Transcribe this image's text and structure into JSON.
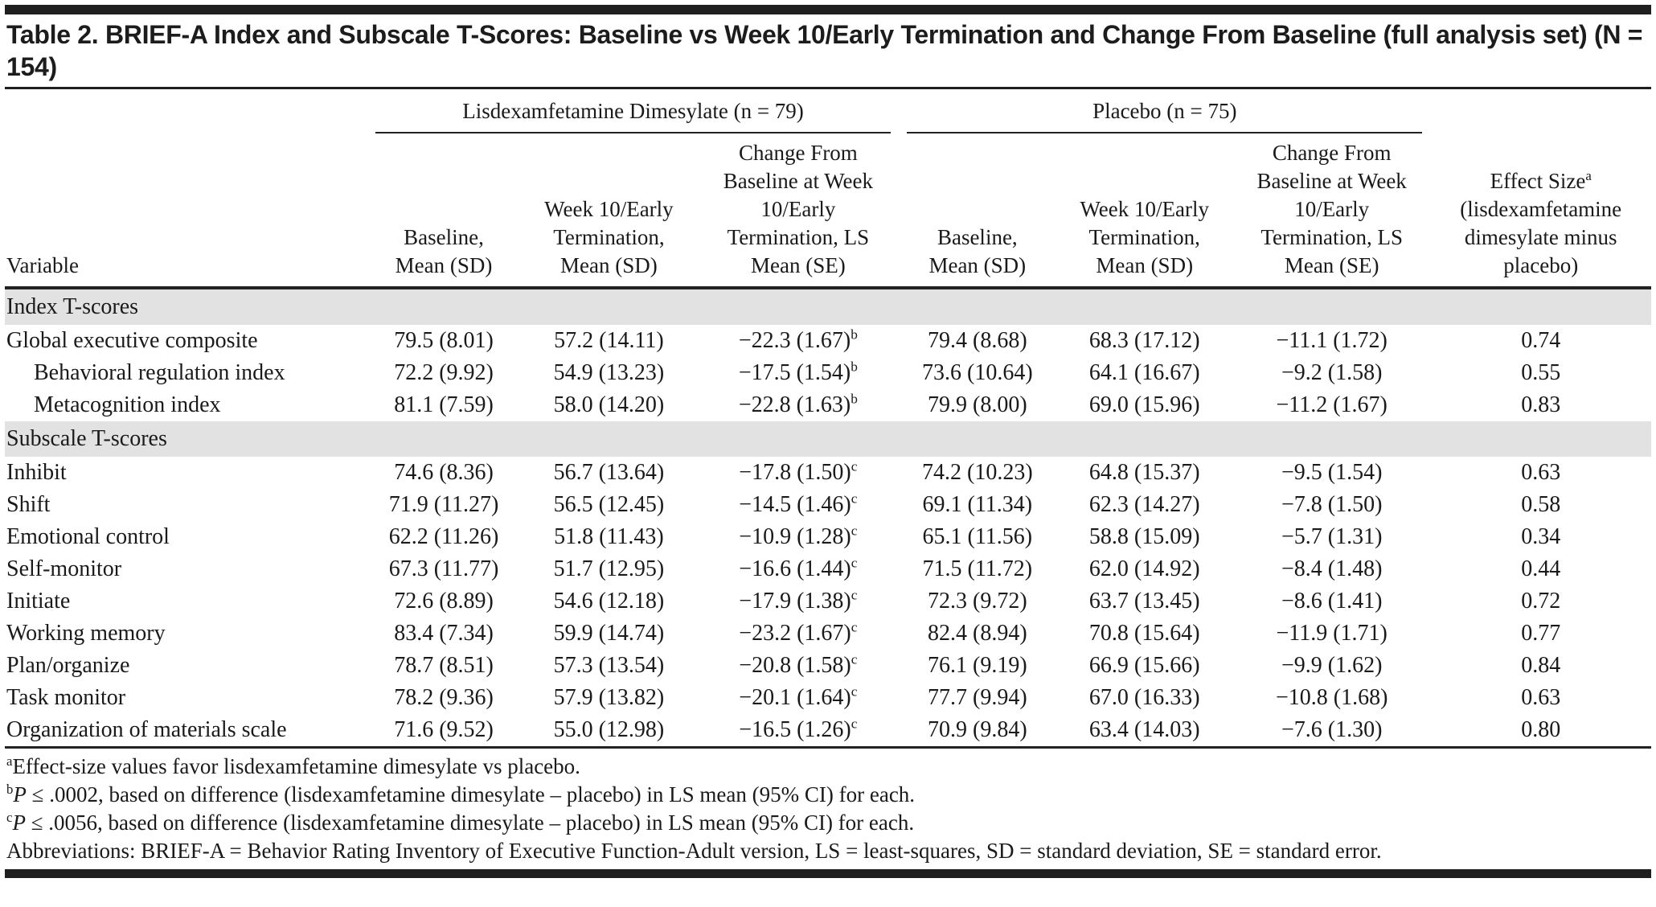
{
  "title": "Table 2. BRIEF-A Index and Subscale T-Scores: Baseline vs Week 10/Early Termination and Change From Baseline (full analysis set) (N = 154)",
  "group_headers": {
    "ldx": "Lisdexamfetamine Dimesylate (n = 79)",
    "placebo": "Placebo (n = 75)"
  },
  "column_headers": {
    "variable": "Variable",
    "baseline": "Baseline, Mean (SD)",
    "week10": "Week 10/Early Termination, Mean (SD)",
    "change": "Change From Baseline at Week 10/Early Termination, LS Mean (SE)",
    "effect_size_label": "Effect Size",
    "effect_size_sup": "a",
    "effect_size_qualifier": "(lisdexamfetamine dimesylate minus placebo)"
  },
  "sections": [
    {
      "label": "Index T-scores",
      "rows": [
        {
          "variable": "Global executive composite",
          "indent": false,
          "ldx_baseline": "79.5 (8.01)",
          "ldx_week10": "57.2 (14.11)",
          "ldx_change": "−22.3 (1.67)",
          "change_sup": "b",
          "pbo_baseline": "79.4 (8.68)",
          "pbo_week10": "68.3 (17.12)",
          "pbo_change": "−11.1 (1.72)",
          "effect_size": "0.74"
        },
        {
          "variable": "Behavioral regulation index",
          "indent": true,
          "ldx_baseline": "72.2 (9.92)",
          "ldx_week10": "54.9 (13.23)",
          "ldx_change": "−17.5 (1.54)",
          "change_sup": "b",
          "pbo_baseline": "73.6 (10.64)",
          "pbo_week10": "64.1 (16.67)",
          "pbo_change": "−9.2 (1.58)",
          "effect_size": "0.55"
        },
        {
          "variable": "Metacognition index",
          "indent": true,
          "ldx_baseline": "81.1 (7.59)",
          "ldx_week10": "58.0 (14.20)",
          "ldx_change": "−22.8 (1.63)",
          "change_sup": "b",
          "pbo_baseline": "79.9 (8.00)",
          "pbo_week10": "69.0 (15.96)",
          "pbo_change": "−11.2 (1.67)",
          "effect_size": "0.83"
        }
      ]
    },
    {
      "label": "Subscale T-scores",
      "rows": [
        {
          "variable": "Inhibit",
          "indent": false,
          "ldx_baseline": "74.6 (8.36)",
          "ldx_week10": "56.7 (13.64)",
          "ldx_change": "−17.8 (1.50)",
          "change_sup": "c",
          "pbo_baseline": "74.2 (10.23)",
          "pbo_week10": "64.8 (15.37)",
          "pbo_change": "−9.5 (1.54)",
          "effect_size": "0.63"
        },
        {
          "variable": "Shift",
          "indent": false,
          "ldx_baseline": "71.9 (11.27)",
          "ldx_week10": "56.5 (12.45)",
          "ldx_change": "−14.5 (1.46)",
          "change_sup": "c",
          "pbo_baseline": "69.1 (11.34)",
          "pbo_week10": "62.3 (14.27)",
          "pbo_change": "−7.8 (1.50)",
          "effect_size": "0.58"
        },
        {
          "variable": "Emotional control",
          "indent": false,
          "ldx_baseline": "62.2 (11.26)",
          "ldx_week10": "51.8 (11.43)",
          "ldx_change": "−10.9 (1.28)",
          "change_sup": "c",
          "pbo_baseline": "65.1 (11.56)",
          "pbo_week10": "58.8 (15.09)",
          "pbo_change": "−5.7 (1.31)",
          "effect_size": "0.34"
        },
        {
          "variable": "Self-monitor",
          "indent": false,
          "ldx_baseline": "67.3 (11.77)",
          "ldx_week10": "51.7 (12.95)",
          "ldx_change": "−16.6 (1.44)",
          "change_sup": "c",
          "pbo_baseline": "71.5 (11.72)",
          "pbo_week10": "62.0 (14.92)",
          "pbo_change": "−8.4 (1.48)",
          "effect_size": "0.44"
        },
        {
          "variable": "Initiate",
          "indent": false,
          "ldx_baseline": "72.6 (8.89)",
          "ldx_week10": "54.6 (12.18)",
          "ldx_change": "−17.9 (1.38)",
          "change_sup": "c",
          "pbo_baseline": "72.3 (9.72)",
          "pbo_week10": "63.7 (13.45)",
          "pbo_change": "−8.6 (1.41)",
          "effect_size": "0.72"
        },
        {
          "variable": "Working memory",
          "indent": false,
          "ldx_baseline": "83.4 (7.34)",
          "ldx_week10": "59.9 (14.74)",
          "ldx_change": "−23.2 (1.67)",
          "change_sup": "c",
          "pbo_baseline": "82.4 (8.94)",
          "pbo_week10": "70.8 (15.64)",
          "pbo_change": "−11.9 (1.71)",
          "effect_size": "0.77"
        },
        {
          "variable": "Plan/organize",
          "indent": false,
          "ldx_baseline": "78.7 (8.51)",
          "ldx_week10": "57.3 (13.54)",
          "ldx_change": "−20.8 (1.58)",
          "change_sup": "c",
          "pbo_baseline": "76.1 (9.19)",
          "pbo_week10": "66.9 (15.66)",
          "pbo_change": "−9.9 (1.62)",
          "effect_size": "0.84"
        },
        {
          "variable": "Task monitor",
          "indent": false,
          "ldx_baseline": "78.2 (9.36)",
          "ldx_week10": "57.9 (13.82)",
          "ldx_change": "−20.1 (1.64)",
          "change_sup": "c",
          "pbo_baseline": "77.7 (9.94)",
          "pbo_week10": "67.0 (16.33)",
          "pbo_change": "−10.8 (1.68)",
          "effect_size": "0.63"
        },
        {
          "variable": "Organization of materials scale",
          "indent": false,
          "ldx_baseline": "71.6 (9.52)",
          "ldx_week10": "55.0 (12.98)",
          "ldx_change": "−16.5 (1.26)",
          "change_sup": "c",
          "pbo_baseline": "70.9 (9.84)",
          "pbo_week10": "63.4 (14.03)",
          "pbo_change": "−7.6 (1.30)",
          "effect_size": "0.80"
        }
      ]
    }
  ],
  "footnotes": [
    {
      "marker": "a",
      "lead_italic": "",
      "text": "Effect-size values favor lisdexamfetamine dimesylate vs placebo.",
      "hanging": false
    },
    {
      "marker": "b",
      "lead_italic": "P",
      "text": " ≤ .0002, based on difference (lisdexamfetamine dimesylate – placebo) in LS mean (95% CI) for each.",
      "hanging": false
    },
    {
      "marker": "c",
      "lead_italic": "P",
      "text": " ≤ .0056, based on difference (lisdexamfetamine dimesylate – placebo) in LS mean (95% CI) for each.",
      "hanging": false
    },
    {
      "marker": "",
      "lead_italic": "",
      "text": "Abbreviations: BRIEF-A = Behavior Rating Inventory of Executive Function-Adult version, LS = least-squares, SD = standard deviation, SE = standard error.",
      "hanging": true
    }
  ],
  "colors": {
    "rule_black": "#1f1f1f",
    "section_band_gray": "#e2e2e2",
    "text": "#1a1a1a"
  }
}
